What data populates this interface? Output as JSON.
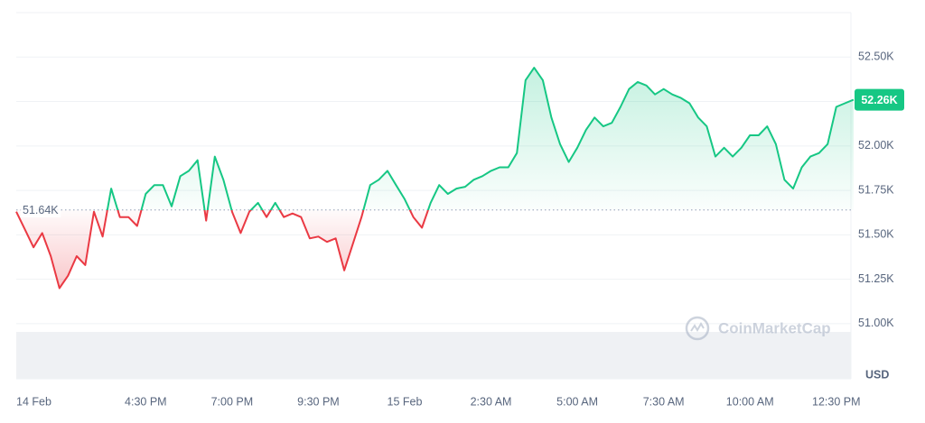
{
  "chart_data": {
    "type": "line",
    "categories": [
      "14 Feb",
      null,
      null,
      null,
      null,
      null,
      null,
      null,
      null,
      null,
      null,
      null,
      null,
      null,
      null,
      "4:30 PM",
      null,
      null,
      null,
      null,
      null,
      null,
      null,
      null,
      null,
      "7:00 PM",
      null,
      null,
      null,
      null,
      null,
      null,
      null,
      null,
      null,
      "9:30 PM",
      null,
      null,
      null,
      null,
      null,
      null,
      null,
      null,
      null,
      "15 Feb",
      null,
      null,
      null,
      null,
      null,
      null,
      null,
      null,
      null,
      "2:30 AM",
      null,
      null,
      null,
      null,
      null,
      null,
      null,
      null,
      null,
      "5:00 AM",
      null,
      null,
      null,
      null,
      null,
      null,
      null,
      null,
      null,
      "7:30 AM",
      null,
      null,
      null,
      null,
      null,
      null,
      null,
      null,
      null,
      "10:00 AM",
      null,
      null,
      null,
      null,
      null,
      null,
      null,
      null,
      null,
      "12:30 PM",
      null,
      null
    ],
    "values": [
      51.63,
      51.53,
      51.43,
      51.51,
      51.38,
      51.2,
      51.27,
      51.38,
      51.33,
      51.63,
      51.49,
      51.76,
      51.6,
      51.6,
      51.55,
      51.73,
      51.78,
      51.78,
      51.66,
      51.83,
      51.86,
      51.92,
      51.58,
      51.94,
      51.81,
      51.63,
      51.51,
      51.63,
      51.68,
      51.6,
      51.68,
      51.6,
      51.62,
      51.6,
      51.48,
      51.49,
      51.46,
      51.48,
      51.3,
      51.45,
      51.6,
      51.78,
      51.81,
      51.86,
      51.78,
      51.7,
      51.6,
      51.54,
      51.68,
      51.78,
      51.73,
      51.76,
      51.77,
      51.81,
      51.83,
      51.86,
      51.88,
      51.88,
      51.96,
      52.37,
      52.44,
      52.37,
      52.16,
      52.01,
      51.91,
      51.99,
      52.09,
      52.16,
      52.11,
      52.13,
      52.22,
      52.32,
      52.36,
      52.34,
      52.29,
      52.32,
      52.29,
      52.27,
      52.24,
      52.16,
      52.11,
      51.94,
      51.99,
      51.94,
      51.99,
      52.06,
      52.06,
      52.11,
      52.01,
      51.81,
      51.76,
      51.88,
      51.94,
      51.96,
      52.01,
      52.22,
      52.24,
      52.26
    ],
    "color_up": "#16c784",
    "color_down": "#ea3943",
    "baseline": {
      "value": 51.64,
      "label": "51.64K"
    },
    "last_price": {
      "value": 52.26,
      "label": "52.26K"
    },
    "ylim": [
      50.69,
      52.75
    ],
    "yticks": [
      {
        "value": 51.0,
        "label": "51.00K"
      },
      {
        "value": 51.25,
        "label": "51.25K"
      },
      {
        "value": 51.5,
        "label": "51.50K"
      },
      {
        "value": 51.75,
        "label": "51.75K"
      },
      {
        "value": 52.0,
        "label": "52.00K"
      },
      {
        "value": 52.25,
        "label": "52.25K"
      },
      {
        "value": 52.5,
        "label": "52.50K"
      }
    ],
    "y_axis_unit": "USD",
    "watermark": "CoinMarketCap",
    "grid": true
  }
}
